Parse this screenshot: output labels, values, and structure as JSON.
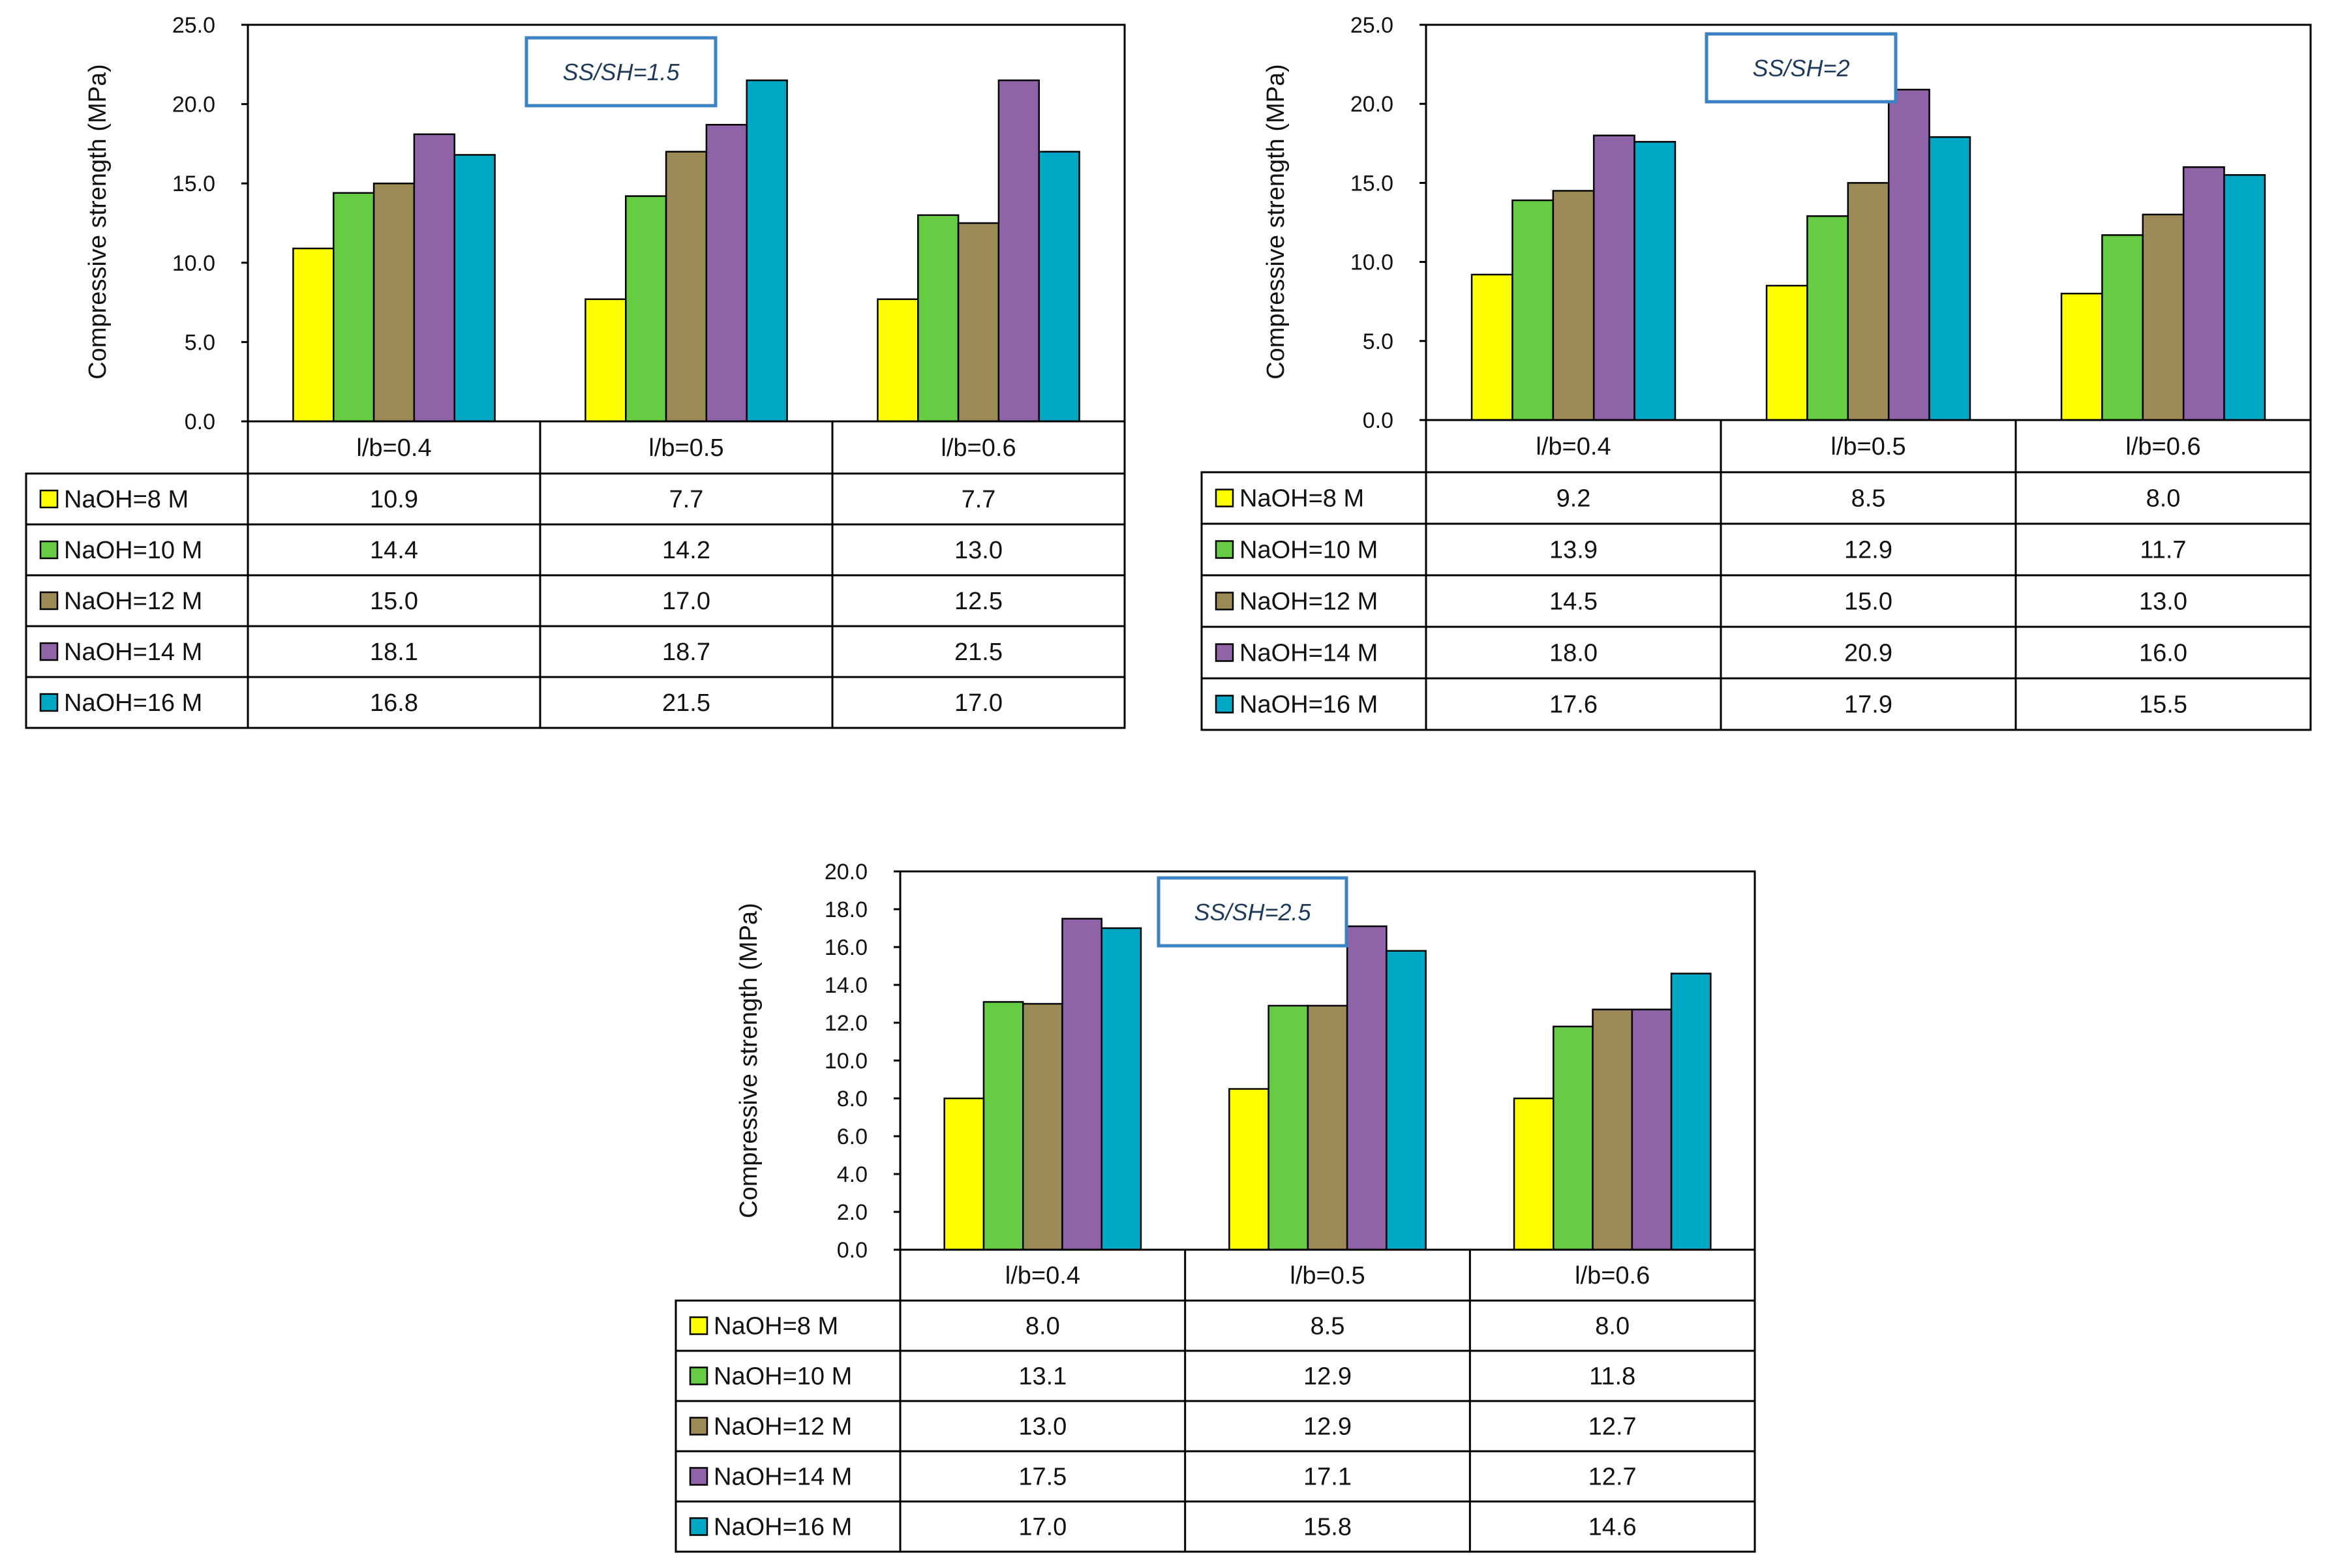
{
  "figure": {
    "series_colors": [
      "#ffff00",
      "#66cc44",
      "#9b8a55",
      "#8f63a8",
      "#00a8c6"
    ],
    "grid_color": "#000000"
  },
  "chart_data": [
    {
      "type": "bar",
      "title": "SS/SH=1.5",
      "ylabel": "Compressive strength (MPa)",
      "xlabel": "",
      "ylim": [
        0,
        25
      ],
      "yticks": [
        "0.0",
        "5.0",
        "10.0",
        "15.0",
        "20.0",
        "25.0"
      ],
      "ytick_values": [
        0,
        5,
        10,
        15,
        20,
        25
      ],
      "categories": [
        "l/b=0.4",
        "l/b=0.5",
        "l/b=0.6"
      ],
      "series": [
        {
          "name": "NaOH=8 M",
          "values": [
            10.9,
            7.7,
            7.7
          ],
          "labels": [
            "10.9",
            "7.7",
            "7.7"
          ]
        },
        {
          "name": "NaOH=10 M",
          "values": [
            14.4,
            14.2,
            13.0
          ],
          "labels": [
            "14.4",
            "14.2",
            "13.0"
          ]
        },
        {
          "name": "NaOH=12 M",
          "values": [
            15.0,
            17.0,
            12.5
          ],
          "labels": [
            "15.0",
            "17.0",
            "12.5"
          ]
        },
        {
          "name": "NaOH=14 M",
          "values": [
            18.1,
            18.7,
            21.5
          ],
          "labels": [
            "18.1",
            "18.7",
            "21.5"
          ]
        },
        {
          "name": "NaOH=16 M",
          "values": [
            16.8,
            21.5,
            17.0
          ],
          "labels": [
            "16.8",
            "21.5",
            "17.0"
          ]
        }
      ]
    },
    {
      "type": "bar",
      "title": "SS/SH=2",
      "ylabel": "Compressive strength (MPa)",
      "xlabel": "",
      "ylim": [
        0,
        25
      ],
      "yticks": [
        "0.0",
        "5.0",
        "10.0",
        "15.0",
        "20.0",
        "25.0"
      ],
      "ytick_values": [
        0,
        5,
        10,
        15,
        20,
        25
      ],
      "categories": [
        "l/b=0.4",
        "l/b=0.5",
        "l/b=0.6"
      ],
      "series": [
        {
          "name": "NaOH=8 M",
          "values": [
            9.2,
            8.5,
            8.0
          ],
          "labels": [
            "9.2",
            "8.5",
            "8.0"
          ]
        },
        {
          "name": "NaOH=10 M",
          "values": [
            13.9,
            12.9,
            11.7
          ],
          "labels": [
            "13.9",
            "12.9",
            "11.7"
          ]
        },
        {
          "name": "NaOH=12 M",
          "values": [
            14.5,
            15.0,
            13.0
          ],
          "labels": [
            "14.5",
            "15.0",
            "13.0"
          ]
        },
        {
          "name": "NaOH=14 M",
          "values": [
            18.0,
            20.9,
            16.0
          ],
          "labels": [
            "18.0",
            "20.9",
            "16.0"
          ]
        },
        {
          "name": "NaOH=16 M",
          "values": [
            17.6,
            17.9,
            15.5
          ],
          "labels": [
            "17.6",
            "17.9",
            "15.5"
          ]
        }
      ]
    },
    {
      "type": "bar",
      "title": "SS/SH=2.5",
      "ylabel": "Compressive strength (MPa)",
      "xlabel": "",
      "ylim": [
        0,
        20
      ],
      "yticks": [
        "0.0",
        "2.0",
        "4.0",
        "6.0",
        "8.0",
        "10.0",
        "12.0",
        "14.0",
        "16.0",
        "18.0",
        "20.0"
      ],
      "ytick_values": [
        0,
        2,
        4,
        6,
        8,
        10,
        12,
        14,
        16,
        18,
        20
      ],
      "categories": [
        "l/b=0.4",
        "l/b=0.5",
        "l/b=0.6"
      ],
      "series": [
        {
          "name": "NaOH=8 M",
          "values": [
            8.0,
            8.5,
            8.0
          ],
          "labels": [
            "8.0",
            "8.5",
            "8.0"
          ]
        },
        {
          "name": "NaOH=10 M",
          "values": [
            13.1,
            12.9,
            11.8
          ],
          "labels": [
            "13.1",
            "12.9",
            "11.8"
          ]
        },
        {
          "name": "NaOH=12 M",
          "values": [
            13.0,
            12.9,
            12.7
          ],
          "labels": [
            "13.0",
            "12.9",
            "12.7"
          ]
        },
        {
          "name": "NaOH=14 M",
          "values": [
            17.5,
            17.1,
            12.7
          ],
          "labels": [
            "17.5",
            "17.1",
            "12.7"
          ]
        },
        {
          "name": "NaOH=16 M",
          "values": [
            17.0,
            15.8,
            14.6
          ],
          "labels": [
            "17.0",
            "15.8",
            "14.6"
          ]
        }
      ]
    }
  ]
}
